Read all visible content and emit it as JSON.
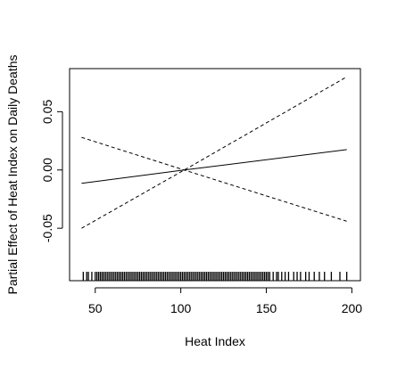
{
  "chart_data": {
    "type": "line",
    "title": "",
    "xlabel": "Heat Index",
    "ylabel": "Partial Effect of Heat Index on Daily Deaths",
    "xlim": [
      35,
      205
    ],
    "ylim": [
      -0.095,
      0.087
    ],
    "x_ticks": [
      50,
      100,
      150,
      200
    ],
    "y_ticks": [
      -0.05,
      0.0,
      0.05
    ],
    "x_tick_labels": [
      "50",
      "100",
      "150",
      "200"
    ],
    "y_tick_labels": [
      "-0.05",
      "0.00",
      "0.05"
    ],
    "grid": false,
    "legend": "none",
    "series": [
      {
        "style": "solid",
        "x": [
          42,
          102,
          197
        ],
        "y": [
          -0.0115,
          0.0,
          0.0175
        ]
      },
      {
        "style": "dashed",
        "x": [
          42,
          102,
          197
        ],
        "y": [
          -0.05,
          0.0,
          0.08
        ]
      },
      {
        "style": "dashed",
        "x": [
          42,
          102,
          197
        ],
        "y": [
          0.028,
          0.0,
          -0.044
        ]
      }
    ],
    "rug_x": [
      43,
      45,
      46,
      48,
      50,
      51,
      52,
      53,
      54,
      55,
      56,
      57,
      58,
      59,
      60,
      61,
      62,
      63,
      64,
      65,
      66,
      67,
      68,
      69,
      70,
      71,
      72,
      73,
      74,
      75,
      76,
      77,
      78,
      79,
      80,
      81,
      82,
      83,
      84,
      85,
      86,
      87,
      88,
      89,
      90,
      91,
      92,
      93,
      94,
      95,
      96,
      97,
      98,
      99,
      100,
      101,
      102,
      103,
      104,
      105,
      106,
      107,
      108,
      109,
      110,
      111,
      112,
      113,
      114,
      115,
      116,
      117,
      118,
      119,
      120,
      121,
      122,
      123,
      124,
      125,
      126,
      127,
      128,
      129,
      130,
      131,
      132,
      133,
      134,
      135,
      136,
      137,
      138,
      139,
      140,
      141,
      142,
      143,
      144,
      145,
      146,
      147,
      148,
      149,
      150,
      151,
      152,
      154,
      156,
      157,
      159,
      161,
      163,
      166,
      168,
      170,
      173,
      175,
      178,
      181,
      184,
      188,
      193,
      197
    ]
  }
}
